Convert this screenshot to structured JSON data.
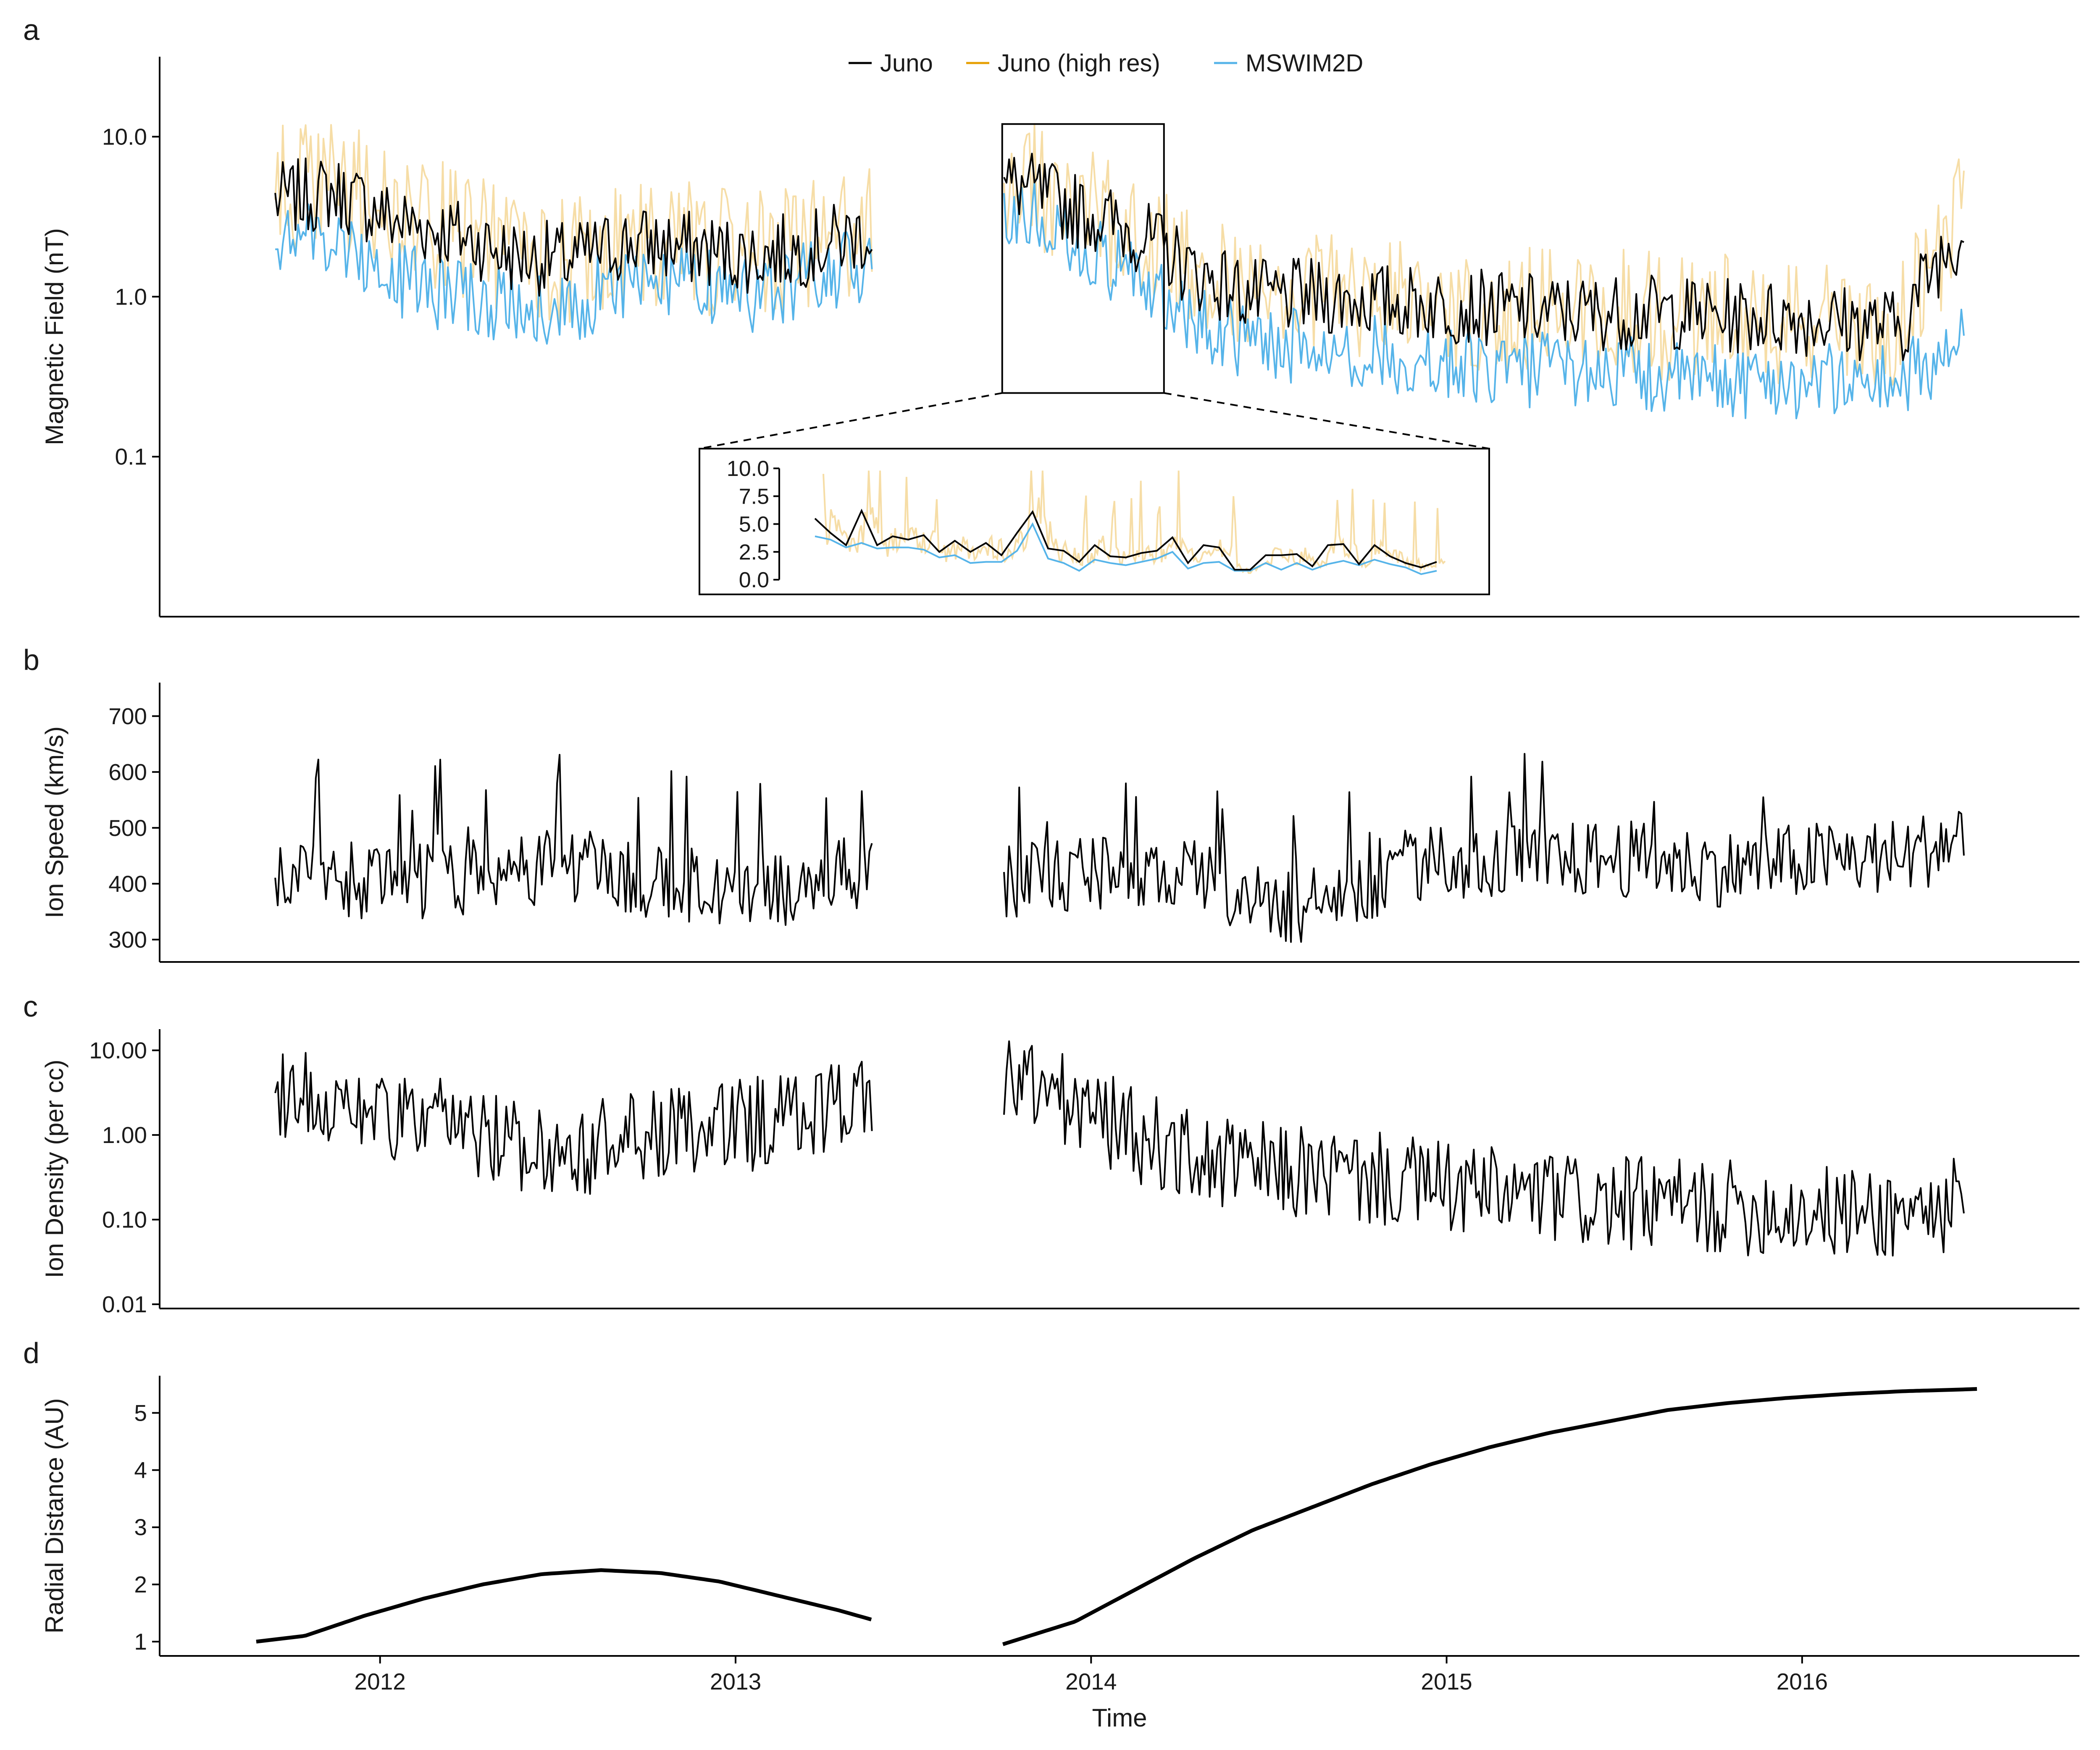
{
  "colors": {
    "juno": "#000000",
    "juno_high_res": "#e69f00",
    "mswim2d": "#56b4e9",
    "axis": "#000000"
  },
  "xaxis": {
    "label": "Time",
    "ticks": [
      "2012",
      "2013",
      "2014",
      "2015",
      "2016"
    ]
  },
  "chart_data": [
    {
      "panel_label": "a",
      "type": "line",
      "ylabel": "Magnetic Field (nT)",
      "yscale": "log",
      "yticks": [
        "0.1",
        "1.0",
        "10.0"
      ],
      "legend": [
        "Juno",
        "Juno (high res)",
        "MSWIM2D"
      ],
      "legend_position": "top-center",
      "x_range": [
        "2011-08",
        "2016-07"
      ],
      "data_gap": [
        "2013-05-20",
        "2013-10-01"
      ],
      "series": [
        {
          "name": "Juno",
          "x": [
            "2011-09",
            "2011-11",
            "2012-01",
            "2012-03",
            "2012-05",
            "2012-07",
            "2012-09",
            "2012-11",
            "2013-01",
            "2013-03",
            "2013-05",
            "2013-10",
            "2013-12",
            "2014-02",
            "2014-04",
            "2014-06",
            "2014-08",
            "2014-10",
            "2014-12",
            "2015-02",
            "2015-04",
            "2015-06",
            "2015-08",
            "2015-10",
            "2015-12",
            "2016-02",
            "2016-04",
            "2016-06"
          ],
          "values": [
            4.0,
            4.5,
            3.0,
            2.5,
            1.8,
            1.7,
            2.2,
            2.0,
            1.8,
            2.0,
            2.5,
            5.0,
            3.5,
            2.5,
            1.4,
            1.0,
            1.0,
            0.95,
            0.9,
            0.85,
            0.8,
            0.8,
            0.8,
            0.75,
            0.75,
            0.7,
            0.65,
            2.5
          ]
        },
        {
          "name": "Juno (high res)",
          "x": [
            "2011-09",
            "2011-11",
            "2012-01",
            "2012-03",
            "2012-05",
            "2012-07",
            "2012-09",
            "2012-11",
            "2013-01",
            "2013-03",
            "2013-05",
            "2013-10",
            "2013-12",
            "2014-02",
            "2014-04",
            "2014-06",
            "2014-08",
            "2014-10",
            "2014-12",
            "2015-02",
            "2015-04",
            "2015-06",
            "2015-08",
            "2015-10",
            "2015-12",
            "2016-02",
            "2016-04",
            "2016-06"
          ],
          "values": [
            4.5,
            5.0,
            3.2,
            2.6,
            1.9,
            1.6,
            2.3,
            2.1,
            1.7,
            2.1,
            2.7,
            5.5,
            3.6,
            2.4,
            1.5,
            1.0,
            1.1,
            0.9,
            0.95,
            0.85,
            0.85,
            0.8,
            0.75,
            0.8,
            0.7,
            0.7,
            0.7,
            3.0
          ]
        },
        {
          "name": "MSWIM2D",
          "x": [
            "2011-09",
            "2011-11",
            "2012-01",
            "2012-03",
            "2012-05",
            "2012-07",
            "2012-09",
            "2012-11",
            "2013-01",
            "2013-03",
            "2013-05",
            "2013-10",
            "2013-12",
            "2014-02",
            "2014-04",
            "2014-06",
            "2014-08",
            "2014-10",
            "2014-12",
            "2015-02",
            "2015-04",
            "2015-06",
            "2015-08",
            "2015-10",
            "2015-12",
            "2016-02",
            "2016-04",
            "2016-06"
          ],
          "values": [
            2.5,
            2.2,
            1.3,
            1.0,
            0.9,
            0.85,
            1.3,
            1.2,
            1.0,
            1.3,
            1.6,
            3.5,
            2.0,
            1.4,
            0.7,
            0.5,
            0.5,
            0.45,
            0.4,
            0.35,
            0.35,
            0.35,
            0.3,
            0.3,
            0.3,
            0.3,
            0.3,
            0.5
          ]
        }
      ],
      "inset": {
        "yticks": [
          "0.0",
          "2.5",
          "5.0",
          "7.5",
          "10.0"
        ],
        "ylim": [
          0,
          10
        ],
        "x_range": [
          "2013-10-01",
          "2014-03-15"
        ],
        "series": [
          {
            "name": "Juno",
            "values": [
              5.5,
              4.2,
              3.1,
              6.2,
              3.1,
              3.9,
              3.6,
              4.0,
              2.5,
              3.5,
              2.5,
              3.3,
              2.2,
              4.2,
              6.1,
              2.8,
              2.6,
              1.6,
              3.1,
              2.1,
              2.0,
              2.4,
              2.6,
              3.8,
              1.5,
              3.1,
              2.9,
              0.9,
              0.9,
              2.2,
              2.2,
              2.3,
              1.2,
              3.1,
              3.2,
              1.4,
              3.1,
              2.1,
              1.5,
              1.1,
              1.6
            ]
          },
          {
            "name": "MSWIM2D",
            "values": [
              3.9,
              3.6,
              2.9,
              3.3,
              2.8,
              2.9,
              2.9,
              2.7,
              2.0,
              2.2,
              1.5,
              1.6,
              1.6,
              2.6,
              5.0,
              1.9,
              1.5,
              0.8,
              1.8,
              1.5,
              1.3,
              1.6,
              1.9,
              2.5,
              1.0,
              1.5,
              1.6,
              0.8,
              0.8,
              1.5,
              0.9,
              1.5,
              0.9,
              1.4,
              1.7,
              1.3,
              1.8,
              1.4,
              1.1,
              0.5,
              0.8
            ]
          }
        ]
      }
    },
    {
      "panel_label": "b",
      "type": "line",
      "ylabel": "Ion Speed (km/s)",
      "ylim": [
        260,
        760
      ],
      "yticks": [
        "300",
        "400",
        "500",
        "600",
        "700"
      ],
      "data_gap": [
        "2013-05-20",
        "2013-10-01"
      ],
      "series": [
        {
          "name": "Juno",
          "x": [
            "2011-09",
            "2011-11",
            "2012-01",
            "2012-03",
            "2012-05",
            "2012-07",
            "2012-09",
            "2012-11",
            "2013-01",
            "2013-03",
            "2013-05",
            "2013-10",
            "2013-12",
            "2014-02",
            "2014-04",
            "2014-06",
            "2014-08",
            "2014-10",
            "2014-12",
            "2015-02",
            "2015-04",
            "2015-06",
            "2015-08",
            "2015-10",
            "2015-12",
            "2016-02",
            "2016-04",
            "2016-06"
          ],
          "values": [
            400,
            400,
            390,
            400,
            420,
            430,
            400,
            390,
            380,
            390,
            420,
            400,
            410,
            420,
            400,
            360,
            350,
            400,
            440,
            430,
            430,
            440,
            430,
            420,
            430,
            440,
            440,
            480
          ]
        }
      ]
    },
    {
      "panel_label": "c",
      "type": "line",
      "ylabel": "Ion Density (per cc)",
      "yscale": "log",
      "yticks": [
        "0.01",
        "0.10",
        "1.00",
        "10.00"
      ],
      "data_gap": [
        "2013-05-20",
        "2013-10-01"
      ],
      "series": [
        {
          "name": "Juno",
          "x": [
            "2011-09",
            "2011-11",
            "2012-01",
            "2012-03",
            "2012-05",
            "2012-07",
            "2012-09",
            "2012-11",
            "2013-01",
            "2013-03",
            "2013-05",
            "2013-10",
            "2013-12",
            "2014-02",
            "2014-04",
            "2014-06",
            "2014-08",
            "2014-10",
            "2014-12",
            "2015-02",
            "2015-04",
            "2015-06",
            "2015-08",
            "2015-10",
            "2015-12",
            "2016-02",
            "2016-04",
            "2016-06"
          ],
          "values": [
            3.5,
            2.5,
            1.5,
            1.2,
            0.8,
            0.6,
            0.9,
            1.0,
            1.3,
            1.8,
            3.0,
            4.5,
            2.0,
            1.0,
            0.5,
            0.4,
            0.35,
            0.3,
            0.25,
            0.2,
            0.18,
            0.15,
            0.15,
            0.14,
            0.13,
            0.12,
            0.12,
            0.15
          ]
        }
      ]
    },
    {
      "panel_label": "d",
      "type": "line",
      "ylabel": "Radial Distance (AU)",
      "ylim": [
        0.75,
        5.65
      ],
      "yticks": [
        "1",
        "2",
        "3",
        "4",
        "5"
      ],
      "data_gap": [
        "2013-05-20",
        "2013-10-01"
      ],
      "series": [
        {
          "name": "Juno",
          "x": [
            "2011-08-26",
            "2011-10",
            "2011-12",
            "2012-02",
            "2012-04",
            "2012-06",
            "2012-08",
            "2012-10",
            "2012-12",
            "2013-02",
            "2013-04",
            "2013-05-20",
            "2013-10-01",
            "2013-12",
            "2014-02",
            "2014-04",
            "2014-06",
            "2014-08",
            "2014-10",
            "2014-12",
            "2015-02",
            "2015-04",
            "2015-06",
            "2015-08",
            "2015-10",
            "2015-12",
            "2016-02",
            "2016-04",
            "2016-06",
            "2016-06-30"
          ],
          "values": [
            1.0,
            1.1,
            1.45,
            1.75,
            2.0,
            2.18,
            2.25,
            2.2,
            2.05,
            1.8,
            1.55,
            1.38,
            0.95,
            1.35,
            1.9,
            2.45,
            2.95,
            3.35,
            3.75,
            4.1,
            4.4,
            4.65,
            4.85,
            5.05,
            5.17,
            5.26,
            5.33,
            5.38,
            5.41,
            5.42
          ]
        }
      ]
    }
  ]
}
